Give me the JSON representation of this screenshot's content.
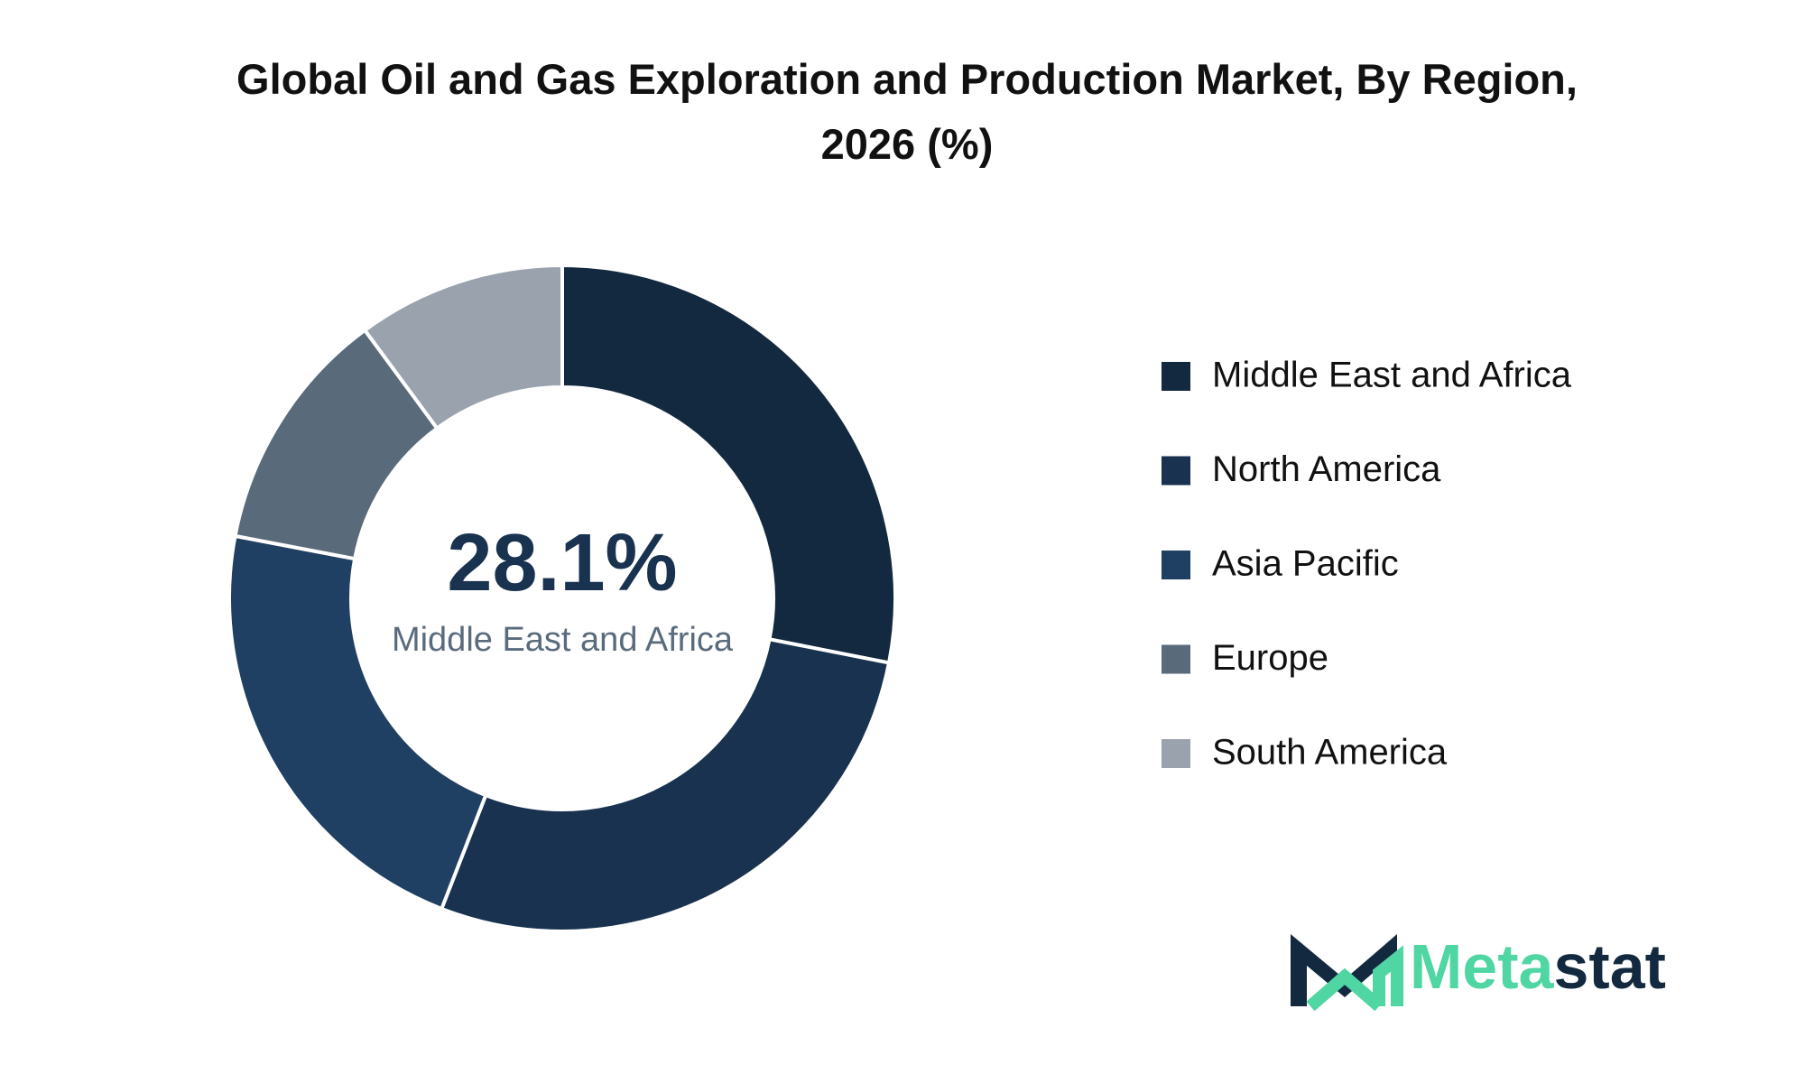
{
  "chart_data": {
    "type": "donut",
    "title": "Global Oil and Gas Exploration and Production Market, By Region, 2026 (%)",
    "categories": [
      "Middle East and Africa",
      "North America",
      "Asia Pacific",
      "Europe",
      "South America"
    ],
    "values": [
      28.1,
      27.8,
      22.1,
      11.9,
      10.1
    ],
    "value_labels": [
      "28.1%",
      null,
      null,
      null,
      null
    ],
    "colors": [
      "#13293f",
      "#18324f",
      "#1f3f63",
      "#596a7b",
      "#9aa2ad"
    ],
    "legend": "right"
  },
  "brand": [
    "Meta",
    "stat"
  ]
}
